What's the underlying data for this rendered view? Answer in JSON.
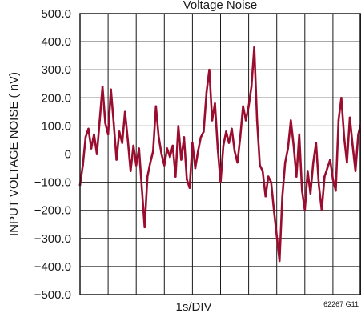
{
  "chart_data": {
    "type": "line",
    "title_partial": "Voltage Noise",
    "xlabel": "1s/DIV",
    "ylabel": "INPUT VOLTAGE NOISE ( nV)",
    "figure_code": "62267 G11",
    "ylim": [
      -500,
      500
    ],
    "y_ticks": [
      500,
      400,
      300,
      200,
      100,
      0,
      -100,
      -200,
      -300,
      -400,
      -500
    ],
    "y_tick_labels": [
      "500.0",
      "400.0",
      "300.0",
      "200.0",
      "100.0",
      "0",
      "−100.0",
      "−200.0",
      "−300.0",
      "−400.0",
      "−500.0"
    ],
    "x_divisions": 10,
    "x_range_s": [
      0,
      10
    ],
    "grid": true,
    "line_color": "#9b0d2e",
    "series": [
      {
        "x": [
          0,
          0.1,
          0.2,
          0.3,
          0.4,
          0.5,
          0.6,
          0.7,
          0.8,
          0.9,
          1.0,
          1.1,
          1.2,
          1.3,
          1.4,
          1.5,
          1.6,
          1.7,
          1.8,
          1.9,
          2.0,
          2.1,
          2.2,
          2.3,
          2.4,
          2.5,
          2.6,
          2.7,
          2.8,
          2.9,
          3.0,
          3.1,
          3.2,
          3.3,
          3.4,
          3.5,
          3.6,
          3.7,
          3.8,
          3.9,
          4.0,
          4.1,
          4.2,
          4.3,
          4.4,
          4.5,
          4.6,
          4.7,
          4.8,
          4.9,
          5.0,
          5.1,
          5.2,
          5.3,
          5.4,
          5.5,
          5.6,
          5.7,
          5.8,
          5.9,
          6.0,
          6.1,
          6.2,
          6.3,
          6.4,
          6.5,
          6.6,
          6.7,
          6.8,
          6.9,
          7.0,
          7.1,
          7.2,
          7.3,
          7.4,
          7.5,
          7.6,
          7.7,
          7.8,
          7.9,
          8.0,
          8.1,
          8.2,
          8.3,
          8.4,
          8.5,
          8.6,
          8.7,
          8.8,
          8.9,
          9.0,
          9.1,
          9.2,
          9.3,
          9.4,
          9.5,
          9.6,
          9.7,
          9.8,
          9.9,
          10.0
        ],
        "y": [
          -110,
          -40,
          60,
          90,
          20,
          70,
          0,
          120,
          240,
          110,
          70,
          230,
          110,
          -20,
          80,
          40,
          150,
          50,
          -60,
          30,
          -40,
          20,
          -120,
          -260,
          -80,
          -30,
          10,
          170,
          60,
          0,
          -40,
          20,
          -10,
          30,
          -80,
          100,
          -20,
          60,
          -90,
          -120,
          40,
          -50,
          10,
          60,
          80,
          220,
          300,
          120,
          180,
          20,
          -100,
          30,
          80,
          40,
          90,
          10,
          -30,
          60,
          170,
          120,
          170,
          240,
          380,
          120,
          -40,
          -60,
          -150,
          -80,
          -100,
          -200,
          -290,
          -380,
          -150,
          -30,
          20,
          120,
          30,
          -80,
          70,
          -130,
          -200,
          -60,
          -140,
          -30,
          40,
          -110,
          -200,
          -80,
          -50,
          -20,
          -90,
          -130,
          120,
          200,
          60,
          -30,
          130,
          30,
          -60,
          70,
          110
        ]
      }
    ]
  }
}
